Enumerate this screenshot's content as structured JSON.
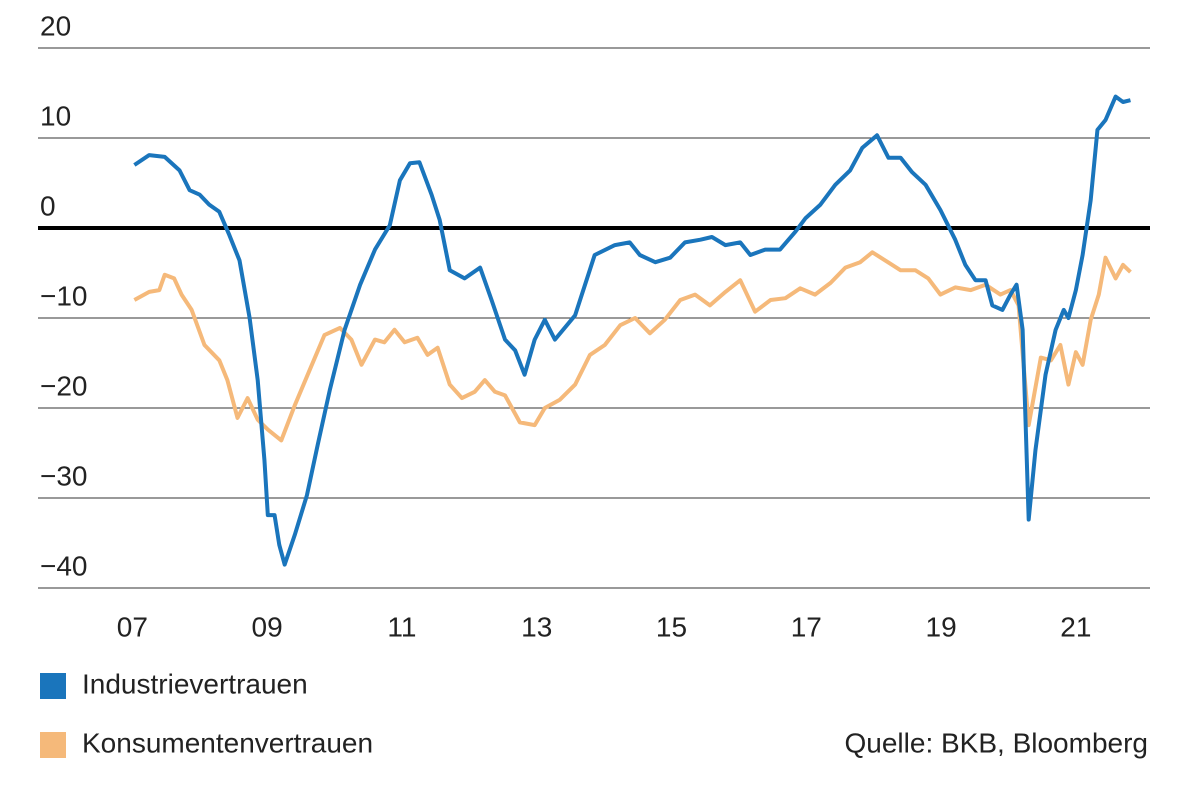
{
  "chart_data": {
    "type": "line",
    "xlim": [
      5.6,
      22.1
    ],
    "xticks": [
      {
        "value": 7,
        "label": "07"
      },
      {
        "value": 9,
        "label": "09"
      },
      11,
      13,
      15,
      17,
      19,
      21
    ],
    "ylim": [
      -40,
      20
    ],
    "yticks": [
      {
        "value": -40,
        "label": "−40"
      },
      {
        "value": -30,
        "label": "−30"
      },
      {
        "value": -20,
        "label": "−20"
      },
      {
        "value": -10,
        "label": "−10"
      },
      0,
      10,
      20
    ],
    "grid": true,
    "source": "Quelle: BKB, Bloomberg",
    "series": [
      {
        "name": "Industrievertrauen",
        "color": "#1a75bc",
        "x": [
          7.03,
          7.25,
          7.48,
          7.7,
          7.85,
          8.0,
          8.14,
          8.29,
          8.44,
          8.59,
          8.74,
          8.86,
          8.96,
          9.01,
          9.11,
          9.18,
          9.26,
          9.41,
          9.59,
          9.75,
          9.93,
          10.15,
          10.38,
          10.6,
          10.82,
          10.97,
          11.12,
          11.26,
          11.44,
          11.56,
          11.71,
          11.93,
          12.16,
          12.33,
          12.53,
          12.68,
          12.82,
          12.97,
          13.12,
          13.27,
          13.57,
          13.86,
          14.16,
          14.38,
          14.53,
          14.76,
          14.98,
          15.2,
          15.43,
          15.6,
          15.8,
          16.02,
          16.17,
          16.39,
          16.61,
          16.84,
          16.99,
          17.21,
          17.43,
          17.65,
          17.83,
          18.05,
          18.22,
          18.4,
          18.57,
          18.77,
          18.99,
          19.21,
          19.36,
          19.51,
          19.66,
          19.76,
          19.91,
          20.03,
          20.12,
          20.21,
          20.3,
          20.4,
          20.55,
          20.7,
          20.82,
          20.89,
          21.0,
          21.1,
          21.22,
          21.32,
          21.44,
          21.59,
          21.7,
          21.81
        ],
        "values": [
          7.0,
          8.1,
          7.9,
          6.4,
          4.2,
          3.7,
          2.6,
          1.8,
          -0.8,
          -3.6,
          -10,
          -16.9,
          -25.8,
          -31.9,
          -31.9,
          -35.2,
          -37.4,
          -34.1,
          -29.7,
          -24.1,
          -18,
          -11.3,
          -6.3,
          -2.4,
          0.3,
          5.3,
          7.2,
          7.3,
          3.7,
          0.9,
          -4.7,
          -5.6,
          -4.4,
          -8,
          -12.4,
          -13.6,
          -16.3,
          -12.4,
          -10.2,
          -12.4,
          -9.7,
          -3,
          -1.9,
          -1.6,
          -3,
          -3.8,
          -3.3,
          -1.6,
          -1.3,
          -1,
          -1.9,
          -1.6,
          -3,
          -2.4,
          -2.4,
          -0.4,
          1.1,
          2.6,
          4.8,
          6.4,
          8.9,
          10.3,
          7.8,
          7.8,
          6.2,
          4.8,
          2,
          -1.3,
          -4.1,
          -5.8,
          -5.8,
          -8.6,
          -9.1,
          -7.4,
          -6.3,
          -11.3,
          -32.4,
          -24.7,
          -16.3,
          -11.3,
          -9.1,
          -10,
          -6.9,
          -3,
          3.1,
          10.9,
          12,
          14.6,
          14,
          14.2
        ]
      },
      {
        "name": "Konsumentenvertrauen",
        "color": "#f5b97a",
        "x": [
          7.03,
          7.25,
          7.4,
          7.48,
          7.62,
          7.73,
          7.88,
          8.07,
          8.29,
          8.41,
          8.56,
          8.71,
          8.86,
          9.01,
          9.21,
          9.41,
          9.63,
          9.85,
          10.08,
          10.25,
          10.4,
          10.6,
          10.74,
          10.89,
          11.04,
          11.23,
          11.38,
          11.53,
          11.71,
          11.89,
          12.08,
          12.23,
          12.38,
          12.53,
          12.75,
          12.97,
          13.12,
          13.34,
          13.57,
          13.79,
          14.01,
          14.24,
          14.46,
          14.68,
          14.9,
          15.13,
          15.35,
          15.57,
          15.8,
          16.02,
          16.24,
          16.47,
          16.69,
          16.91,
          17.13,
          17.36,
          17.58,
          17.8,
          17.98,
          18.17,
          18.4,
          18.62,
          18.81,
          18.99,
          19.21,
          19.44,
          19.66,
          19.88,
          20.03,
          20.15,
          20.3,
          20.48,
          20.63,
          20.77,
          20.89,
          21.0,
          21.1,
          21.22,
          21.34,
          21.44,
          21.59,
          21.7,
          21.81
        ],
        "values": [
          -8,
          -7.1,
          -6.9,
          -5.2,
          -5.6,
          -7.4,
          -9.1,
          -13,
          -14.7,
          -16.9,
          -21.1,
          -18.9,
          -21.3,
          -22.4,
          -23.6,
          -19.7,
          -15.8,
          -11.9,
          -11.1,
          -12.4,
          -15.2,
          -12.4,
          -12.7,
          -11.3,
          -12.7,
          -12.2,
          -14.1,
          -13.3,
          -17.4,
          -18.9,
          -18.2,
          -16.9,
          -18.2,
          -18.6,
          -21.6,
          -21.9,
          -20,
          -19.1,
          -17.4,
          -14.1,
          -13,
          -10.8,
          -10,
          -11.7,
          -10.2,
          -8,
          -7.4,
          -8.6,
          -7.1,
          -5.8,
          -9.3,
          -8,
          -7.8,
          -6.7,
          -7.4,
          -6.1,
          -4.4,
          -3.8,
          -2.7,
          -3.6,
          -4.7,
          -4.7,
          -5.6,
          -7.4,
          -6.6,
          -6.9,
          -6.3,
          -7.4,
          -6.9,
          -8.6,
          -21.9,
          -14.4,
          -14.7,
          -13,
          -17.4,
          -13.8,
          -15.2,
          -10.2,
          -7.4,
          -3.3,
          -5.6,
          -4.1,
          -4.9
        ]
      }
    ]
  }
}
